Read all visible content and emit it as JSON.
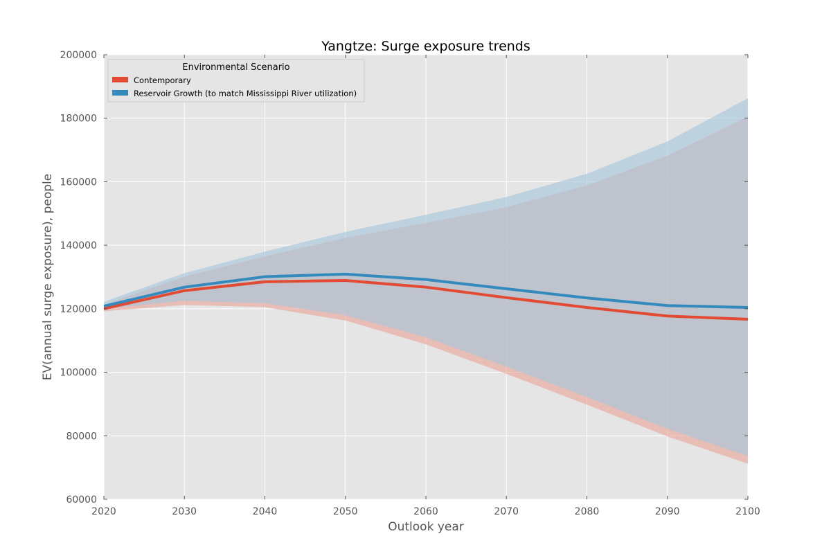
{
  "chart_data": {
    "type": "area",
    "title": "Yangtze: Surge exposure trends",
    "xlabel": "Outlook year",
    "ylabel": "EV(annual surge exposure), people",
    "xlim": [
      2020,
      2100
    ],
    "ylim": [
      60000,
      200000
    ],
    "x_ticks": [
      2020,
      2030,
      2040,
      2050,
      2060,
      2070,
      2080,
      2090,
      2100
    ],
    "y_ticks": [
      60000,
      80000,
      100000,
      120000,
      140000,
      160000,
      180000,
      200000
    ],
    "grid": true,
    "legend": {
      "title": "Environmental Scenario",
      "placement": "top-left"
    },
    "x": [
      2020,
      2030,
      2040,
      2050,
      2060,
      2070,
      2080,
      2090,
      2100
    ],
    "series": [
      {
        "name": "Contemporary",
        "color": "#e24a33",
        "band_color": "#e8a79c",
        "values": [
          120000,
          125700,
          128500,
          128900,
          126800,
          123500,
          120400,
          117700,
          116700
        ],
        "lower": [
          119200,
          121200,
          120500,
          116300,
          108800,
          99500,
          89800,
          79800,
          71200
        ],
        "upper": [
          121300,
          130100,
          136500,
          142300,
          147000,
          152000,
          158800,
          168200,
          180500
        ]
      },
      {
        "name": "Reservoir Growth (to match Mississippi River utilization)",
        "color": "#348abd",
        "band_color": "#a9c6da",
        "values": [
          120800,
          126800,
          130100,
          130900,
          129200,
          126300,
          123400,
          121000,
          120400
        ],
        "lower": [
          120000,
          122500,
          121700,
          118000,
          111000,
          101800,
          92200,
          82200,
          73600
        ],
        "upper": [
          122200,
          131200,
          138000,
          144200,
          149600,
          155200,
          162500,
          172700,
          186300
        ]
      }
    ]
  }
}
